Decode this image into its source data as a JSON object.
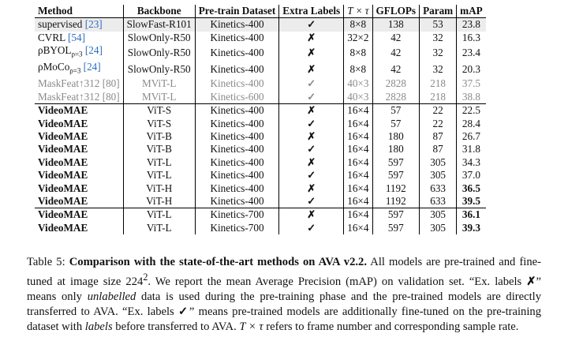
{
  "table": {
    "headers": [
      "Method",
      "Backbone",
      "Pre-train Dataset",
      "Extra Labels",
      "T × τ",
      "GFLOPs",
      "Param",
      "mAP"
    ],
    "rows": [
      {
        "method": "supervised",
        "sub": "",
        "cite": "[23]",
        "backbone": "SlowFast-R101",
        "dataset": "Kinetics-400",
        "labels": "✓",
        "ttau": "8×8",
        "gflops": "138",
        "param": "53",
        "map": "23.8"
      },
      {
        "method": "CVRL",
        "sub": "",
        "cite": "[54]",
        "backbone": "SlowOnly-R50",
        "dataset": "Kinetics-400",
        "labels": "✗",
        "ttau": "32×2",
        "gflops": "42",
        "param": "32",
        "map": "16.3"
      },
      {
        "method": "ρBYOL",
        "sub": "ρ=3",
        "cite": "[24]",
        "backbone": "SlowOnly-R50",
        "dataset": "Kinetics-400",
        "labels": "✗",
        "ttau": "8×8",
        "gflops": "42",
        "param": "32",
        "map": "23.4"
      },
      {
        "method": "ρMoCo",
        "sub": "ρ=3",
        "cite": "[24]",
        "backbone": "SlowOnly-R50",
        "dataset": "Kinetics-400",
        "labels": "✗",
        "ttau": "8×8",
        "gflops": "42",
        "param": "32",
        "map": "20.3"
      },
      {
        "method": "MaskFeat↑312",
        "sub": "",
        "cite": "[80]",
        "backbone": "MViT-L",
        "dataset": "Kinetics-400",
        "labels": "✓",
        "ttau": "40×3",
        "gflops": "2828",
        "param": "218",
        "map": "37.5"
      },
      {
        "method": "MaskFeat↑312",
        "sub": "",
        "cite": "[80]",
        "backbone": "MViT-L",
        "dataset": "Kinetics-600",
        "labels": "✓",
        "ttau": "40×3",
        "gflops": "2828",
        "param": "218",
        "map": "38.8"
      },
      {
        "method": "VideoMAE",
        "sub": "",
        "cite": "",
        "backbone": "ViT-S",
        "dataset": "Kinetics-400",
        "labels": "✗",
        "ttau": "16×4",
        "gflops": "57",
        "param": "22",
        "map": "22.5"
      },
      {
        "method": "VideoMAE",
        "sub": "",
        "cite": "",
        "backbone": "ViT-S",
        "dataset": "Kinetics-400",
        "labels": "✓",
        "ttau": "16×4",
        "gflops": "57",
        "param": "22",
        "map": "28.4"
      },
      {
        "method": "VideoMAE",
        "sub": "",
        "cite": "",
        "backbone": "ViT-B",
        "dataset": "Kinetics-400",
        "labels": "✗",
        "ttau": "16×4",
        "gflops": "180",
        "param": "87",
        "map": "26.7"
      },
      {
        "method": "VideoMAE",
        "sub": "",
        "cite": "",
        "backbone": "ViT-B",
        "dataset": "Kinetics-400",
        "labels": "✓",
        "ttau": "16×4",
        "gflops": "180",
        "param": "87",
        "map": "31.8"
      },
      {
        "method": "VideoMAE",
        "sub": "",
        "cite": "",
        "backbone": "ViT-L",
        "dataset": "Kinetics-400",
        "labels": "✗",
        "ttau": "16×4",
        "gflops": "597",
        "param": "305",
        "map": "34.3"
      },
      {
        "method": "VideoMAE",
        "sub": "",
        "cite": "",
        "backbone": "ViT-L",
        "dataset": "Kinetics-400",
        "labels": "✓",
        "ttau": "16×4",
        "gflops": "597",
        "param": "305",
        "map": "37.0"
      },
      {
        "method": "VideoMAE",
        "sub": "",
        "cite": "",
        "backbone": "ViT-H",
        "dataset": "Kinetics-400",
        "labels": "✗",
        "ttau": "16×4",
        "gflops": "1192",
        "param": "633",
        "map": "36.5"
      },
      {
        "method": "VideoMAE",
        "sub": "",
        "cite": "",
        "backbone": "ViT-H",
        "dataset": "Kinetics-400",
        "labels": "✓",
        "ttau": "16×4",
        "gflops": "1192",
        "param": "633",
        "map": "39.5"
      },
      {
        "method": "VideoMAE",
        "sub": "",
        "cite": "",
        "backbone": "ViT-L",
        "dataset": "Kinetics-700",
        "labels": "✗",
        "ttau": "16×4",
        "gflops": "597",
        "param": "305",
        "map": "36.1"
      },
      {
        "method": "VideoMAE",
        "sub": "",
        "cite": "",
        "backbone": "ViT-L",
        "dataset": "Kinetics-700",
        "labels": "✓",
        "ttau": "16×4",
        "gflops": "597",
        "param": "305",
        "map": "39.3"
      }
    ]
  },
  "caption": {
    "label": "Table 5: ",
    "title": "Comparison with the state-of-the-art methods on AVA v2.2.",
    "s1": " All models are pre-trained and fine-tuned at image size 224",
    "s1_sup": "2",
    "s2": ". We report the mean Average Precision (mAP) on validation set. “Ex. labels ",
    "s2_mark": "✗",
    "s3": "” means only ",
    "s3_em": "unlabelled",
    "s4": " data is used during the pre-training phase and the pre-trained models are directly transferred to AVA. “Ex. labels ",
    "s4_mark": "✓",
    "s5": "” means pre-trained models are additionally fine-tuned on the pre-training dataset with ",
    "s5_em": "labels",
    "s6": " before transferred to AVA. ",
    "s6_math": "T × τ",
    "s7": " refers to frame number and corresponding sample rate."
  }
}
